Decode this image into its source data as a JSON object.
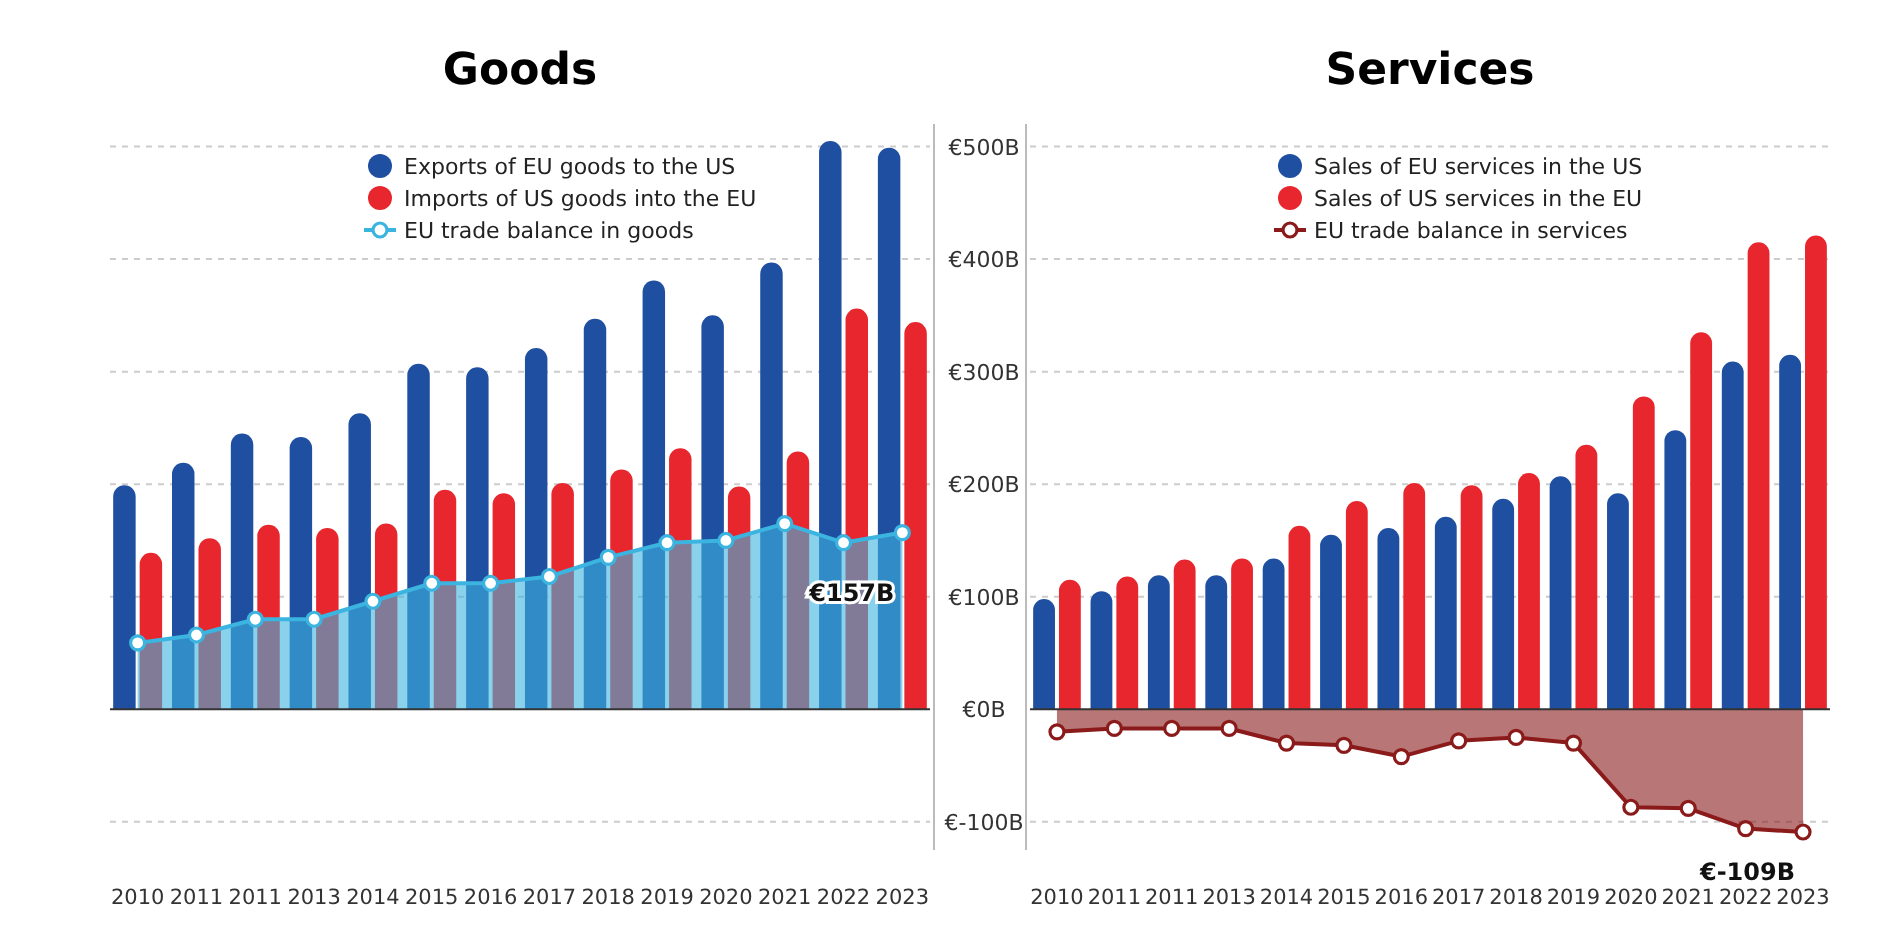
{
  "chart_data": [
    {
      "type": "bar",
      "title": "Goods",
      "categories": [
        "2010",
        "2011",
        "2011",
        "2013",
        "2014",
        "2015",
        "2016",
        "2017",
        "2018",
        "2019",
        "2020",
        "2021",
        "2022",
        "2023"
      ],
      "series": [
        {
          "name": "Exports of EU goods to the US",
          "color": "#1f4fa0",
          "values": [
            199,
            219,
            245,
            242,
            263,
            307,
            304,
            321,
            347,
            381,
            350,
            397,
            505,
            499
          ]
        },
        {
          "name": "Imports of US goods into the EU",
          "color": "#e8262e",
          "values": [
            139,
            152,
            164,
            161,
            165,
            195,
            192,
            201,
            213,
            232,
            198,
            229,
            356,
            344
          ]
        },
        {
          "name": "EU trade balance in goods",
          "type": "area",
          "color": "#3cb4e0",
          "values": [
            59,
            66,
            80,
            80,
            96,
            112,
            112,
            118,
            135,
            148,
            150,
            165,
            148,
            157
          ]
        }
      ],
      "ylim": [
        -125,
        520
      ],
      "yticks": [
        {
          "value": -100,
          "label": "€-100B"
        },
        {
          "value": 0,
          "label": "€0B"
        },
        {
          "value": 100,
          "label": "€100B"
        },
        {
          "value": 200,
          "label": "€200B"
        },
        {
          "value": 300,
          "label": "€300B"
        },
        {
          "value": 400,
          "label": "€400B"
        },
        {
          "value": 500,
          "label": "€500B"
        }
      ],
      "grid": "y",
      "legend": "top",
      "marker": "circle",
      "annotations": [
        {
          "text": "€157B",
          "x": "2023",
          "y": 157
        }
      ]
    },
    {
      "type": "bar",
      "title": "Services",
      "categories": [
        "2010",
        "2011",
        "2011",
        "2013",
        "2014",
        "2015",
        "2016",
        "2017",
        "2018",
        "2019",
        "2020",
        "2021",
        "2022",
        "2023"
      ],
      "series": [
        {
          "name": "Sales of EU services in the US",
          "color": "#1f4fa0",
          "values": [
            98,
            105,
            119,
            119,
            134,
            155,
            161,
            171,
            187,
            207,
            192,
            248,
            309,
            315
          ]
        },
        {
          "name": "Sales of US services in the EU",
          "color": "#e8262e",
          "values": [
            115,
            118,
            133,
            134,
            163,
            185,
            201,
            199,
            210,
            235,
            278,
            335,
            415,
            421
          ]
        },
        {
          "name": "EU trade balance in services",
          "type": "area",
          "color": "#8b1a1a",
          "values": [
            -20,
            -17,
            -17,
            -17,
            -30,
            -32,
            -42,
            -28,
            -25,
            -30,
            -87,
            -88,
            -106,
            -109
          ]
        }
      ],
      "ylim": [
        -125,
        520
      ],
      "yticks": [
        {
          "value": -100,
          "label": null
        },
        {
          "value": 0,
          "label": null
        },
        {
          "value": 100,
          "label": null
        },
        {
          "value": 200,
          "label": null
        },
        {
          "value": 300,
          "label": null
        },
        {
          "value": 400,
          "label": null
        },
        {
          "value": 500,
          "label": null
        }
      ],
      "grid": "y",
      "legend": "top",
      "marker": "circle",
      "tick_labels": "x",
      "annotations": [
        {
          "text": "€-109B",
          "x": "2023",
          "y": -109
        }
      ]
    }
  ]
}
